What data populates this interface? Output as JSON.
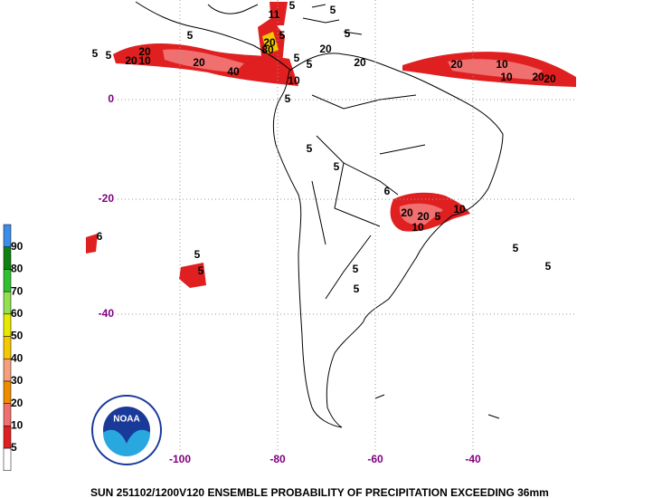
{
  "map": {
    "title": "SUN 251102/1200V120  ENSEMBLE PROBABILITY OF PRECIPITATION EXCEEDING 36mm",
    "latitude_labels": [
      "0",
      "-20",
      "-40"
    ],
    "longitude_labels": [
      "-100",
      "-80",
      "-60",
      "-40"
    ],
    "legend": {
      "labels": [
        "5",
        "10",
        "20",
        "30",
        "40",
        "50",
        "60",
        "70",
        "80",
        "90"
      ],
      "colors": [
        "#ffffff",
        "#e02020",
        "#f07070",
        "#f08c00",
        "#f5a07a",
        "#f5c800",
        "#e8e800",
        "#90e050",
        "#30c030",
        "#108010",
        "#3a8ee8"
      ]
    },
    "logo_text": "NOAA",
    "contour_labels": [
      "5",
      "5",
      "20",
      "10",
      "5",
      "20",
      "20",
      "40",
      "20",
      "11",
      "5",
      "80",
      "5",
      "5",
      "5",
      "10",
      "5",
      "5",
      "5",
      "20",
      "20",
      "20",
      "10",
      "10",
      "20",
      "20",
      "6",
      "20",
      "20",
      "10",
      "5",
      "10",
      "5",
      "5",
      "5",
      "5",
      "5",
      "5",
      "6",
      "5",
      "5"
    ]
  }
}
